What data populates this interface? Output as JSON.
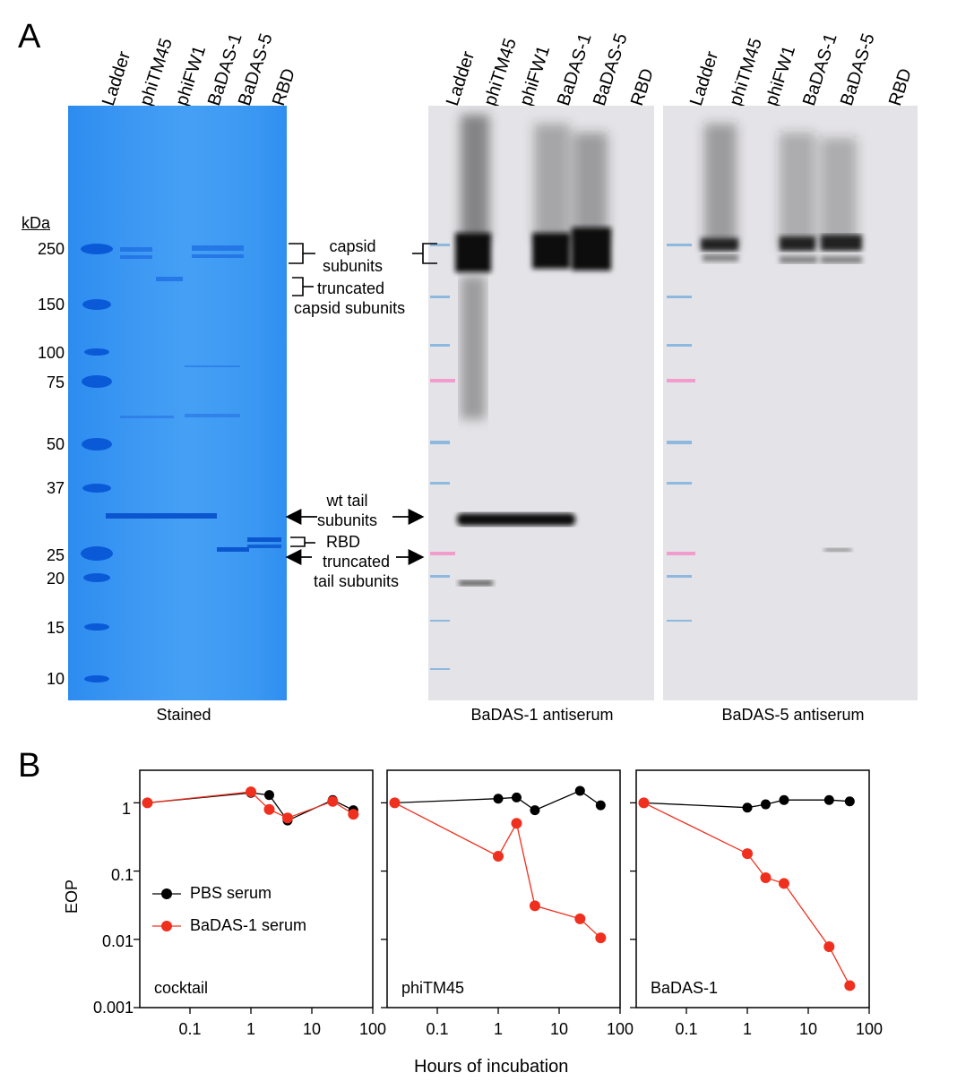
{
  "panel_a": {
    "letter": "A",
    "lanes": [
      "Ladder",
      "phiTM45",
      "phiFW1",
      "BaDAS-1",
      "BaDAS-5",
      "RBD"
    ],
    "mw_unit": "kDa",
    "mw_markers": [
      "250",
      "150",
      "100",
      "75",
      "50",
      "37",
      "25",
      "20",
      "15",
      "10"
    ],
    "captions": [
      "Stained",
      "BaDAS-1 antiserum",
      "BaDAS-5 antiserum"
    ],
    "annotations": {
      "capsid_left": [
        "capsid",
        "subunits"
      ],
      "truncated_capsid": [
        "truncated",
        "capsid subunits"
      ],
      "capsid_right": [
        "capsid",
        "subunits"
      ],
      "wt_tail": [
        "wt tail",
        "subunits"
      ],
      "rbd": "RBD",
      "truncated_tail": [
        "truncated",
        "tail subunits"
      ]
    }
  },
  "panel_b": {
    "letter": "B",
    "y_axis_label": "EOP",
    "x_axis_label": "Hours of incubation",
    "y_ticks": [
      "1",
      "0.1",
      "0.01",
      "0.001"
    ],
    "x_ticks": [
      "0.1",
      "1",
      "10",
      "100"
    ],
    "legend": [
      "PBS serum",
      "BaDAS-1 serum"
    ],
    "colors": {
      "pbs": "#000000",
      "badas": "#f0301e"
    }
  },
  "chart_data": [
    {
      "type": "line",
      "title": "cocktail",
      "xscale": "log",
      "yscale": "log",
      "xlim": [
        0.015,
        100
      ],
      "ylim": [
        0.001,
        3
      ],
      "series": [
        {
          "name": "PBS serum",
          "x": [
            0.02,
            1,
            2,
            4,
            22,
            48
          ],
          "y": [
            1.0,
            1.4,
            1.3,
            0.55,
            1.1,
            0.78
          ]
        },
        {
          "name": "BaDAS-1 serum",
          "x": [
            0.02,
            1,
            2,
            4,
            22,
            48
          ],
          "y": [
            1.0,
            1.45,
            0.8,
            0.6,
            1.05,
            0.68
          ]
        }
      ]
    },
    {
      "type": "line",
      "title": "phiTM45",
      "xscale": "log",
      "yscale": "log",
      "xlim": [
        0.015,
        100
      ],
      "ylim": [
        0.001,
        3
      ],
      "series": [
        {
          "name": "PBS serum",
          "x": [
            0.02,
            1,
            2,
            4,
            22,
            48
          ],
          "y": [
            1.0,
            1.15,
            1.2,
            0.78,
            1.5,
            0.92
          ]
        },
        {
          "name": "BaDAS-1 serum",
          "x": [
            0.02,
            1,
            2,
            4,
            22,
            48
          ],
          "y": [
            1.0,
            0.165,
            0.5,
            0.031,
            0.02,
            0.0105
          ]
        }
      ]
    },
    {
      "type": "line",
      "title": "BaDAS-1",
      "xscale": "log",
      "yscale": "log",
      "xlim": [
        0.015,
        100
      ],
      "ylim": [
        0.001,
        3
      ],
      "series": [
        {
          "name": "PBS serum",
          "x": [
            0.02,
            1,
            2,
            4,
            22,
            48
          ],
          "y": [
            1.0,
            0.85,
            0.95,
            1.1,
            1.1,
            1.05
          ]
        },
        {
          "name": "BaDAS-1 serum",
          "x": [
            0.02,
            1,
            2,
            4,
            22,
            48
          ],
          "y": [
            1.0,
            0.18,
            0.08,
            0.066,
            0.0078,
            0.0021
          ]
        }
      ]
    }
  ]
}
